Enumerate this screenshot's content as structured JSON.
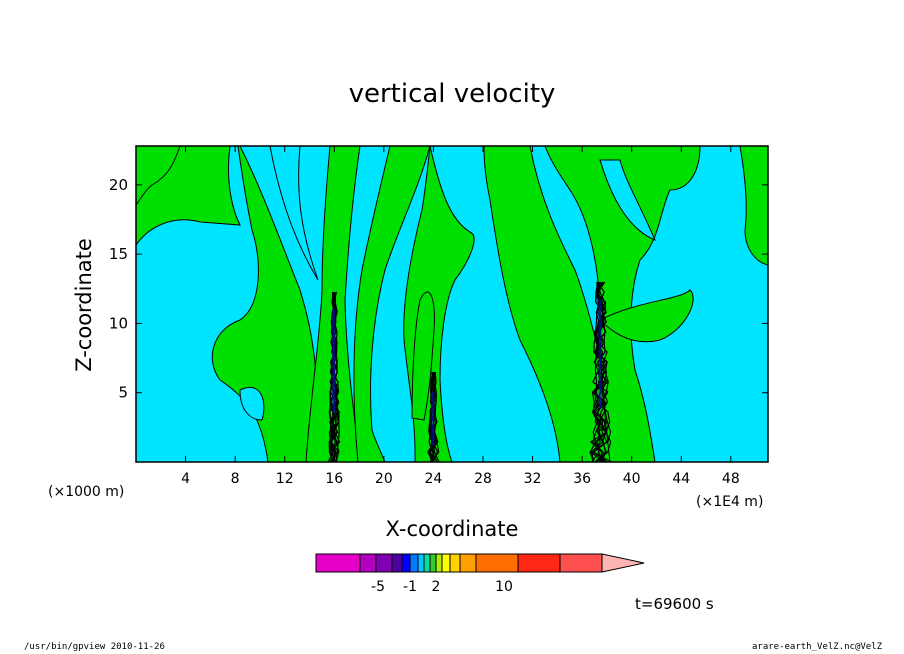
{
  "chart_data": {
    "type": "contour",
    "title": "vertical velocity",
    "xlabel": "X-coordinate",
    "ylabel": "Z-coordinate",
    "x_ticks": [
      "4",
      "8",
      "12",
      "16",
      "20",
      "24",
      "28",
      "32",
      "36",
      "40",
      "44",
      "48"
    ],
    "x_tick_values": [
      4,
      8,
      12,
      16,
      20,
      24,
      28,
      32,
      36,
      40,
      44,
      48
    ],
    "y_ticks": [
      "5",
      "10",
      "15",
      "20"
    ],
    "y_tick_values": [
      5,
      10,
      15,
      20
    ],
    "xlim": [
      0,
      51
    ],
    "ylim": [
      0,
      22.8
    ],
    "x_unit_left": "(×1000 m)",
    "x_unit_right": "(×1E4 m)",
    "grid": false,
    "colors": {
      "negative_small": "#00e5ff",
      "positive_small": "#00e000",
      "contour_line": "#000000",
      "frame": "#000000"
    },
    "updraft_columns": [
      {
        "x_center": 16,
        "top": 12.5
      },
      {
        "x_center": 24,
        "top": 6.5
      },
      {
        "x_center": 37.5,
        "top": 13.2
      }
    ],
    "colorbar": {
      "colors": [
        "#e600c8",
        "#b400c0",
        "#8200b4",
        "#5000a0",
        "#0000ff",
        "#0078ff",
        "#00c8ff",
        "#00e1a0",
        "#32cd32",
        "#aaf000",
        "#ffff00",
        "#ffd200",
        "#ffa000",
        "#ff6e00",
        "#ff2814",
        "#ff5050",
        "#ff8282",
        "#ffb4b4"
      ],
      "tick_labels": [
        "-5",
        "-1",
        "2",
        "10"
      ]
    }
  },
  "time_label": "t=69600 s",
  "footer_left": "/usr/bin/gpview   2010-11-26",
  "footer_right": "arare-earth_VelZ.nc@VelZ"
}
